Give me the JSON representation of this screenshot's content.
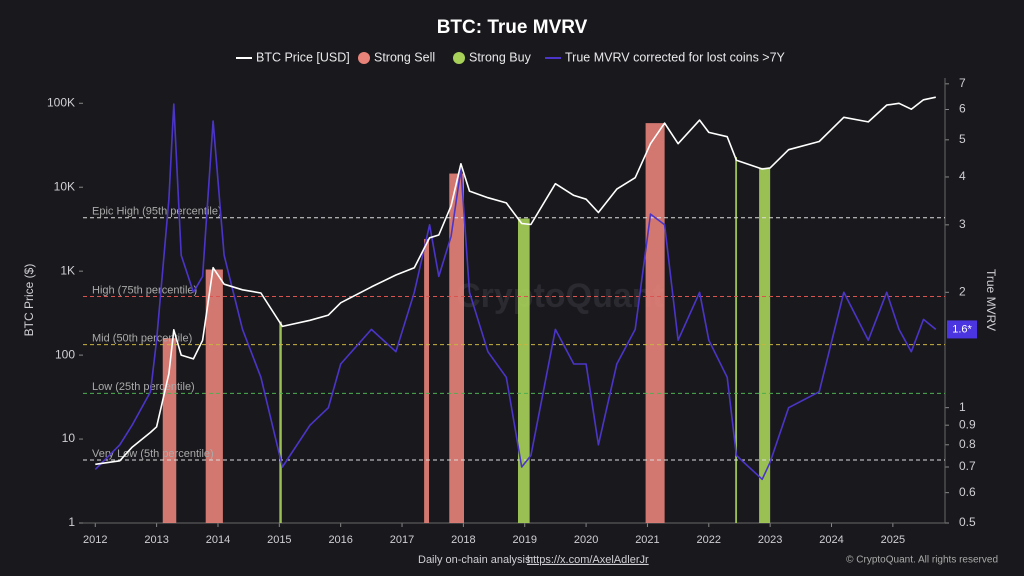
{
  "chart_data": {
    "type": "line",
    "title": "BTC: True MVRV",
    "y_label": "BTC Price ($)",
    "y2_label": "True MVRV",
    "watermark": "CryptoQuant",
    "footer_text": "Daily on-chain analysis:",
    "footer_link": "https://x.com/AxelAdlerJr",
    "credit": "© CryptoQuant. All rights reserved",
    "log_y": true,
    "log_y2": true,
    "xlim": [
      2011.8,
      2025.85
    ],
    "xticks": [
      2012,
      2013,
      2014,
      2015,
      2016,
      2017,
      2018,
      2019,
      2020,
      2021,
      2022,
      2023,
      2024,
      2025
    ],
    "ylim": [
      1,
      200000
    ],
    "yticks": [
      1,
      10,
      100,
      {
        "value": 1000,
        "label": "1K"
      },
      {
        "value": 10000,
        "label": "10K"
      },
      {
        "value": 100000,
        "label": "100K"
      }
    ],
    "y2lim": [
      0.5,
      7.25
    ],
    "y2ticks": [
      0.5,
      0.6,
      0.7,
      0.8,
      0.9,
      1,
      2,
      3,
      4,
      5,
      6,
      7
    ],
    "x": [
      2012.0,
      2012.4,
      2012.6,
      2012.9,
      2013.0,
      2013.2,
      2013.28,
      2013.4,
      2013.6,
      2013.75,
      2013.92,
      2014.1,
      2014.4,
      2014.7,
      2015.05,
      2015.5,
      2015.8,
      2016.0,
      2016.5,
      2016.9,
      2017.2,
      2017.45,
      2017.6,
      2017.8,
      2017.96,
      2018.1,
      2018.4,
      2018.7,
      2018.95,
      2019.1,
      2019.5,
      2019.8,
      2020.0,
      2020.2,
      2020.5,
      2020.8,
      2021.05,
      2021.28,
      2021.5,
      2021.85,
      2022.0,
      2022.3,
      2022.45,
      2022.87,
      2023.0,
      2023.3,
      2023.8,
      2024.2,
      2024.6,
      2024.9,
      2025.1,
      2025.3,
      2025.5,
      2025.7
    ],
    "series": [
      {
        "name": "BTC Price [USD]",
        "color": "#ffffff",
        "values": [
          5,
          5.5,
          8,
          12,
          14,
          60,
          200,
          100,
          90,
          150,
          1100,
          700,
          600,
          550,
          220,
          260,
          300,
          420,
          650,
          900,
          1100,
          2500,
          2700,
          6000,
          19000,
          9000,
          7500,
          6500,
          3700,
          3600,
          11000,
          8000,
          7200,
          5000,
          9500,
          13000,
          33000,
          58000,
          33000,
          63000,
          45000,
          40000,
          21000,
          16500,
          17000,
          28000,
          35000,
          68000,
          60000,
          95000,
          100000,
          85000,
          110000,
          118000
        ]
      },
      {
        "name": "True MVRV corrected for lost coins >7Y",
        "color": "#4b35c9",
        "axis": "y2",
        "values": [
          0.69,
          0.8,
          0.9,
          1.1,
          1.5,
          3.5,
          6.2,
          2.5,
          2.0,
          2.2,
          5.6,
          2.5,
          1.6,
          1.2,
          0.7,
          0.9,
          1.0,
          1.3,
          1.6,
          1.4,
          2.0,
          3.0,
          2.2,
          2.8,
          4.2,
          2.0,
          1.4,
          1.2,
          0.7,
          0.75,
          1.6,
          1.3,
          1.3,
          0.8,
          1.3,
          1.6,
          3.2,
          3.0,
          1.5,
          2.0,
          1.5,
          1.2,
          0.75,
          0.65,
          0.72,
          1.0,
          1.1,
          2.0,
          1.5,
          2.0,
          1.6,
          1.4,
          1.7,
          1.6
        ]
      }
    ],
    "bands": [
      {
        "name": "Strong Sell",
        "color": "#e8837a",
        "ranges": [
          [
            2013.1,
            2013.32
          ],
          [
            2013.8,
            2014.08
          ],
          [
            2017.36,
            2017.44
          ],
          [
            2017.77,
            2018.01
          ],
          [
            2020.97,
            2021.28
          ]
        ]
      },
      {
        "name": "Strong Buy",
        "color": "#a8d15a",
        "ranges": [
          [
            2015.0,
            2015.04
          ],
          [
            2018.89,
            2019.08
          ],
          [
            2022.43,
            2022.46
          ],
          [
            2022.82,
            2023.0
          ]
        ]
      }
    ],
    "reference_lines": [
      {
        "label": "Epic High (95th percentile)",
        "value": 3.13,
        "color": "#dddddd"
      },
      {
        "label": "High (75th percentile)",
        "value": 1.95,
        "color": "#d9534f"
      },
      {
        "label": "Mid (50th percentile)",
        "value": 1.46,
        "color": "#c9b440"
      },
      {
        "label": "Low (25th percentile)",
        "value": 1.09,
        "color": "#4caf50"
      },
      {
        "label": "Very Low (5th percentile)",
        "value": 0.73,
        "color": "#dddddd"
      }
    ],
    "current": {
      "value": 1.6,
      "label": "1.6*",
      "color": "#4b35e0"
    }
  }
}
